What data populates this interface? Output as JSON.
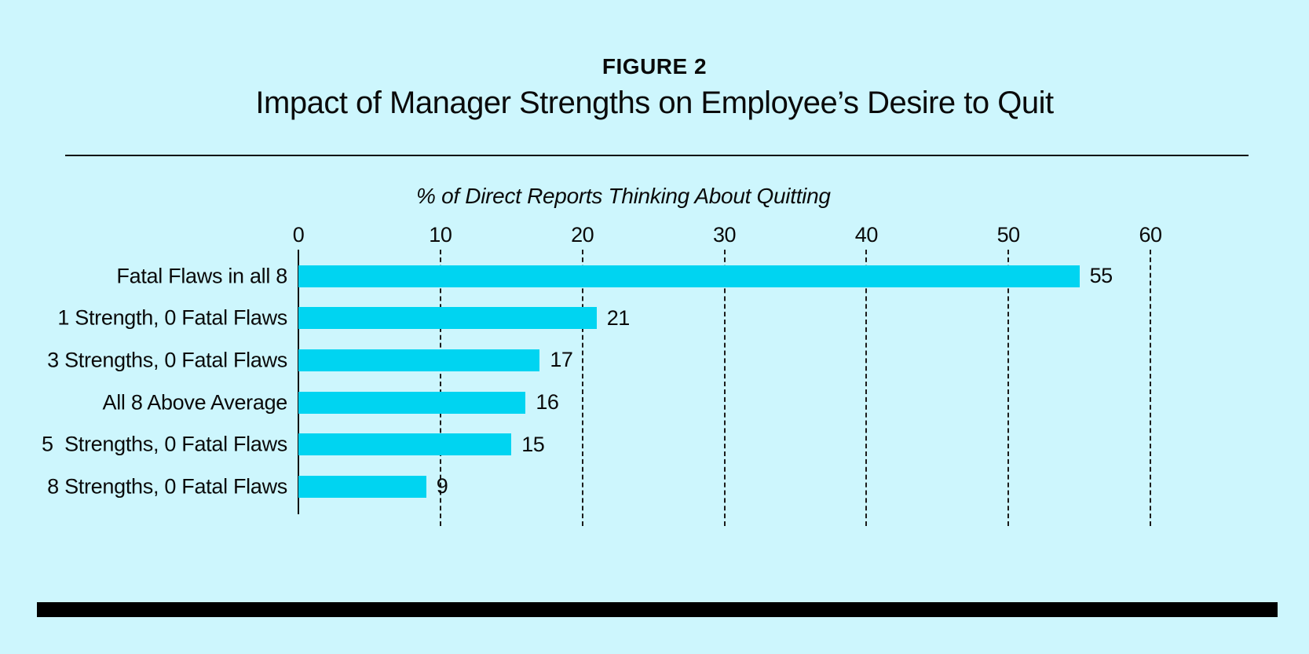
{
  "figure": {
    "label": "FIGURE 2",
    "title": "Impact of Manager Strengths on Employee’s Desire to Quit"
  },
  "chart_data": {
    "type": "bar",
    "orientation": "horizontal",
    "title": "% of Direct Reports Thinking About Quitting",
    "categories": [
      "Fatal Flaws in all 8",
      "1 Strength, 0 Fatal Flaws",
      "3 Strengths, 0 Fatal Flaws",
      "All 8 Above Average",
      "5  Strengths, 0 Fatal Flaws",
      "8 Strengths, 0 Fatal Flaws"
    ],
    "values": [
      55,
      21,
      17,
      16,
      15,
      9
    ],
    "xlim": [
      0,
      60
    ],
    "xticks": [
      0,
      10,
      20,
      30,
      40,
      50,
      60
    ],
    "grid": "dashed-vertical",
    "legend": "none",
    "bar_color": "#00d4f1",
    "background_color": "#cdf6fd",
    "text_color": "#0a0a0a"
  }
}
